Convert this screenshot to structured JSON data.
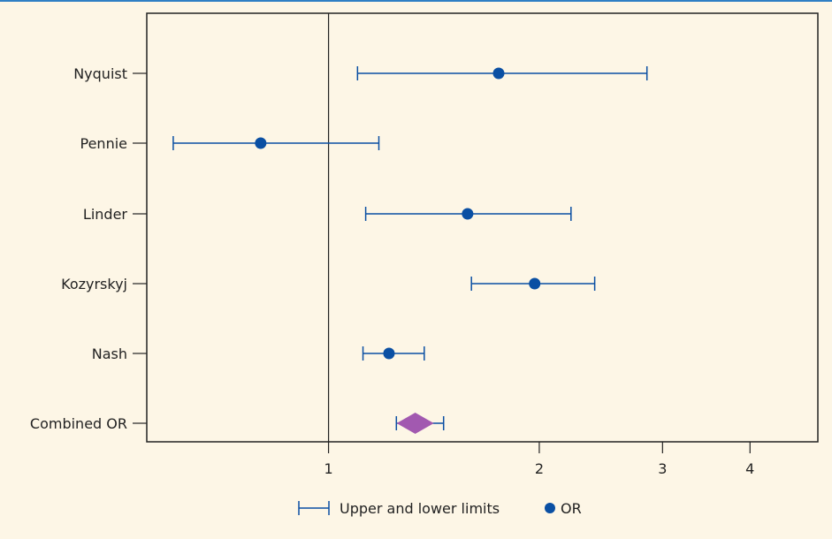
{
  "chart_data": {
    "type": "forest",
    "scale": "log",
    "xlim": [
      0.55,
      5.0
    ],
    "xticks": [
      1,
      2,
      3,
      4
    ],
    "xtick_labels": [
      "1",
      "2",
      "3",
      "4"
    ],
    "reference_line": 1,
    "grid": false,
    "legend_position": "bottom",
    "categories": [
      "Nyquist",
      "Pennie",
      "Linder",
      "Kozyrskyj",
      "Nash",
      "Combined OR"
    ],
    "studies": [
      {
        "label": "Nyquist",
        "or": 1.75,
        "lower": 1.1,
        "upper": 2.85
      },
      {
        "label": "Pennie",
        "or": 0.8,
        "lower": 0.6,
        "upper": 1.18
      },
      {
        "label": "Linder",
        "or": 1.58,
        "lower": 1.13,
        "upper": 2.22
      },
      {
        "label": "Kozyrskyj",
        "or": 1.97,
        "lower": 1.6,
        "upper": 2.4
      },
      {
        "label": "Nash",
        "or": 1.22,
        "lower": 1.12,
        "upper": 1.37
      }
    ],
    "combined": {
      "label": "Combined OR",
      "or": 1.33,
      "lower": 1.25,
      "upper": 1.46
    },
    "legend": [
      {
        "label": "Upper and lower limits",
        "symbol": "interval"
      },
      {
        "label": "OR",
        "symbol": "dot"
      }
    ],
    "colors": {
      "background": "#fdf6e6",
      "study": "#0a4fa3",
      "combined": "#a259b0",
      "top_rule": "#2f7fc4",
      "axis": "#222222"
    }
  }
}
